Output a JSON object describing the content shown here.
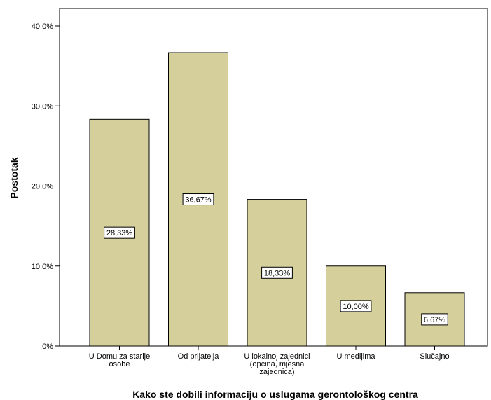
{
  "chart_data": {
    "type": "bar",
    "xlabel": "Kako ste dobili informaciju o uslugama gerontološkog centra",
    "ylabel": "Postotak",
    "ylim": [
      0,
      40
    ],
    "yticks": [
      0,
      10,
      20,
      30,
      40
    ],
    "ytick_labels": [
      ",0%",
      "10,0%",
      "20,0%",
      "30,0%",
      "40,0%"
    ],
    "grid": false,
    "bar_color": "#d5cf9c",
    "categories": [
      [
        "U Domu za starije",
        "osobe"
      ],
      [
        "Od prijatelja"
      ],
      [
        "U lokalnoj zajednici",
        "(općina, mjesna",
        "zajednica)"
      ],
      [
        "U medijima"
      ],
      [
        "Slučajno"
      ]
    ],
    "values": [
      28.33,
      36.67,
      18.33,
      10.0,
      6.67
    ],
    "data_labels": [
      "28,33%",
      "36,67%",
      "18,33%",
      "10,00%",
      "6,67%"
    ]
  }
}
